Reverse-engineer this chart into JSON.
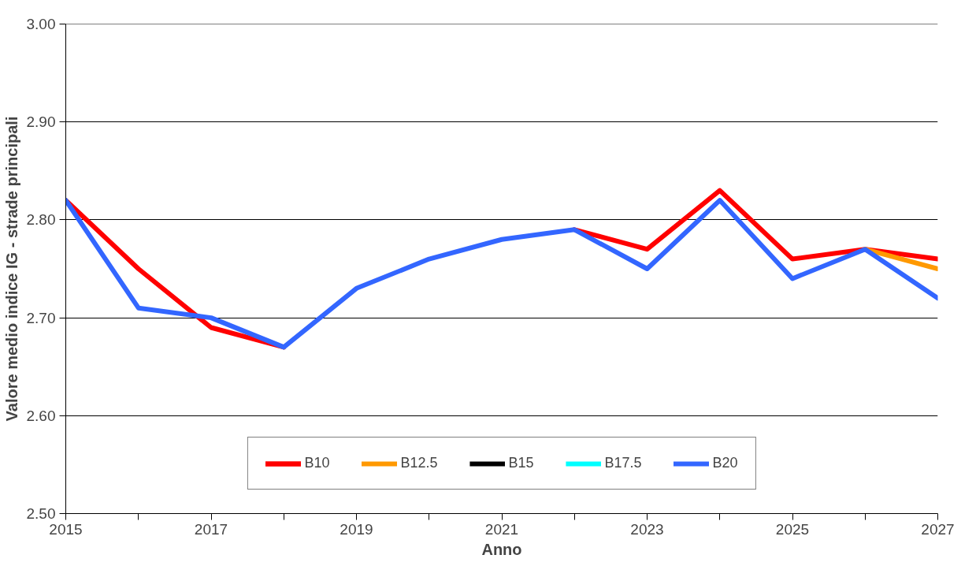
{
  "chart_data": {
    "type": "line",
    "xlabel": "Anno",
    "ylabel": "Valore medio indice IG - strade principali",
    "x": [
      2015,
      2016,
      2017,
      2018,
      2019,
      2020,
      2021,
      2022,
      2023,
      2024,
      2025,
      2026,
      2027
    ],
    "series": [
      {
        "name": "B10",
        "color": "#ff0000",
        "values": [
          2.82,
          2.75,
          2.69,
          2.67,
          null,
          null,
          null,
          2.79,
          2.77,
          2.83,
          2.76,
          2.77,
          2.76
        ]
      },
      {
        "name": "B12.5",
        "color": "#ff9900",
        "values": [
          null,
          null,
          null,
          null,
          null,
          null,
          null,
          null,
          null,
          null,
          null,
          2.77,
          2.75
        ]
      },
      {
        "name": "B15",
        "color": "#000000",
        "values": [
          null,
          null,
          null,
          null,
          null,
          null,
          null,
          null,
          null,
          null,
          null,
          null,
          null
        ]
      },
      {
        "name": "B17.5",
        "color": "#00ffff",
        "values": [
          null,
          null,
          null,
          null,
          null,
          null,
          null,
          null,
          null,
          null,
          null,
          null,
          null
        ]
      },
      {
        "name": "B20",
        "color": "#3366ff",
        "values": [
          2.82,
          2.71,
          2.7,
          2.67,
          2.73,
          2.76,
          2.78,
          2.79,
          2.75,
          2.82,
          2.74,
          2.77,
          2.72
        ]
      }
    ],
    "xlim": [
      2015,
      2027
    ],
    "xticks": [
      2015,
      {
        "value": 2016,
        "label": null
      },
      2017,
      {
        "value": 2018,
        "label": null
      },
      2019,
      {
        "value": 2020,
        "label": null
      },
      2021,
      {
        "value": 2022,
        "label": null
      },
      2023,
      {
        "value": 2024,
        "label": null
      },
      2025,
      {
        "value": 2026,
        "label": null
      },
      2027
    ],
    "ylim": [
      2.5,
      3.0
    ],
    "yticks": [
      {
        "value": 2.5,
        "label": "2.50"
      },
      {
        "value": 2.6,
        "label": "2.60"
      },
      {
        "value": 2.7,
        "label": "2.70"
      },
      {
        "value": 2.8,
        "label": "2.80"
      },
      {
        "value": 2.9,
        "label": "2.90"
      },
      {
        "value": 3.0,
        "label": "3.00"
      }
    ],
    "grid": "y",
    "legend": "bottom",
    "marker": "none",
    "line_style": "solid"
  }
}
